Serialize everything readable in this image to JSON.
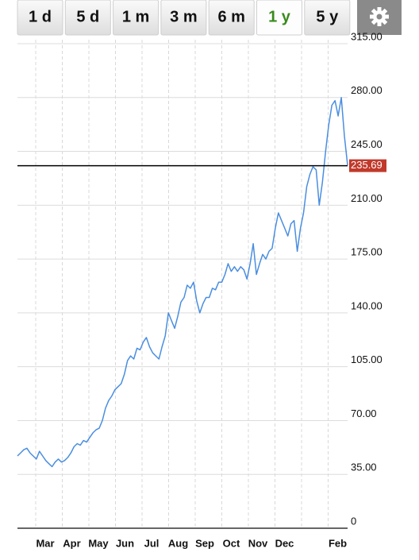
{
  "toolbar": {
    "buttons": [
      "1 d",
      "5 d",
      "1 m",
      "3 m",
      "6 m",
      "1 y",
      "5 y"
    ]
  },
  "chart_data": {
    "type": "line",
    "color": "#4a8ee0",
    "values": [
      47,
      49,
      51,
      52,
      49,
      47,
      45,
      50,
      47,
      44,
      42,
      40,
      43,
      45,
      43,
      44,
      46,
      49,
      53,
      55,
      54,
      57,
      56,
      59,
      62,
      64,
      65,
      70,
      78,
      83,
      86,
      90,
      92,
      94,
      100,
      109,
      112,
      110,
      117,
      116,
      121,
      124,
      118,
      114,
      112,
      110,
      118,
      125,
      140,
      135,
      130,
      138,
      147,
      150,
      158,
      156,
      160,
      148,
      140,
      146,
      150,
      150,
      156,
      155,
      160,
      160,
      165,
      172,
      167,
      170,
      167,
      170,
      168,
      162,
      172,
      185,
      165,
      172,
      178,
      175,
      180,
      182,
      195,
      205,
      200,
      195,
      190,
      198,
      200,
      180,
      195,
      205,
      222,
      230,
      235,
      233,
      210,
      225,
      245,
      262,
      275,
      278,
      268,
      280,
      255,
      236
    ],
    "x_labels": [
      "Mar",
      "Apr",
      "May",
      "Jun",
      "Jul",
      "Aug",
      "Sep",
      "Oct",
      "Nov",
      "Dec",
      null,
      "Feb"
    ],
    "ylim": [
      0,
      315
    ],
    "yticks": [
      0,
      {
        "value": 35,
        "label": "35.00"
      },
      {
        "value": 70,
        "label": "70.00"
      },
      {
        "value": 105,
        "label": "105.00"
      },
      {
        "value": 140,
        "label": "140.00"
      },
      {
        "value": 175,
        "label": "175.00"
      },
      {
        "value": 210,
        "label": "210.00"
      },
      {
        "value": 245,
        "label": "245.00"
      },
      {
        "value": 280,
        "label": "280.00"
      },
      {
        "value": 315,
        "label": "315.00"
      }
    ],
    "last_price": 235.69,
    "grid": true
  }
}
